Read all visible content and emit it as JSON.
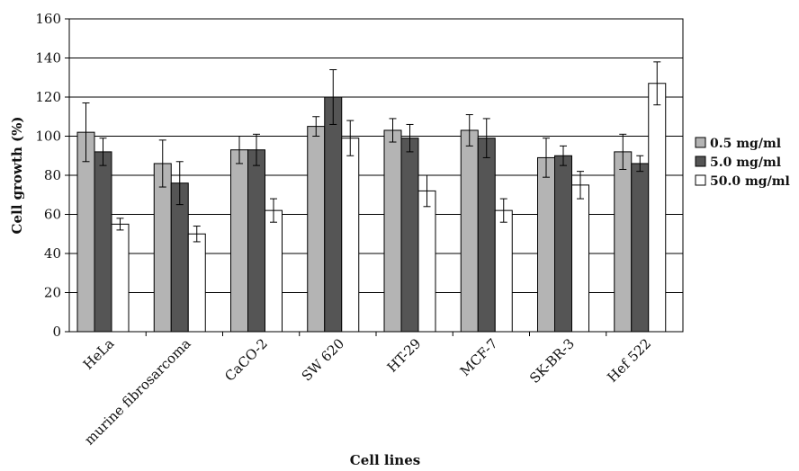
{
  "chart_data": {
    "type": "bar",
    "title": "",
    "xlabel": "Cell lines",
    "ylabel": "Cell growth (%)",
    "ylim": [
      0,
      160
    ],
    "yticks": [
      0,
      20,
      40,
      60,
      80,
      100,
      120,
      140,
      160
    ],
    "grid": "horizontal",
    "legend_position": "right",
    "categories": [
      "HeLa",
      "murine fibrosarcoma",
      "CaCO-2",
      "SW 620",
      "HT-29",
      "MCF-7",
      "SK-BR-3",
      "Hef 522"
    ],
    "series": [
      {
        "name": "0.5 mg/ml",
        "color": "#b4b4b4",
        "values": [
          102,
          86,
          93,
          105,
          103,
          103,
          89,
          92
        ],
        "errors": [
          15,
          12,
          7,
          5,
          6,
          8,
          10,
          9
        ]
      },
      {
        "name": "5.0 mg/ml",
        "color": "#555555",
        "values": [
          92,
          76,
          93,
          120,
          99,
          99,
          90,
          86
        ],
        "errors": [
          7,
          11,
          8,
          14,
          7,
          10,
          5,
          4
        ]
      },
      {
        "name": "50.0 mg/ml",
        "color": "#ffffff",
        "values": [
          55,
          50,
          62,
          99,
          72,
          62,
          75,
          127
        ],
        "errors": [
          3,
          4,
          6,
          9,
          8,
          6,
          7,
          11
        ]
      }
    ]
  }
}
